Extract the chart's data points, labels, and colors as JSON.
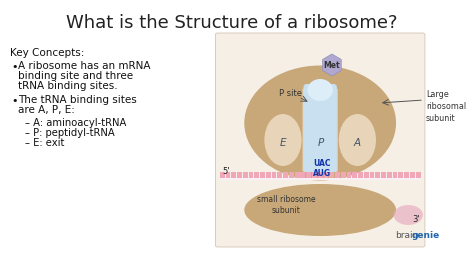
{
  "bg_color": "#ffffff",
  "diagram_bg": "#f5efe6",
  "title": "What is the Structure of a ribosome?",
  "title_fontsize": 13,
  "title_color": "#222222",
  "key_concepts_label": "Key Concepts:",
  "bullet1_line1": "A ribosome has an mRNA",
  "bullet1_line2": "binding site and three",
  "bullet1_line3": "tRNA binding sites.",
  "bullet2_line1": "The tRNA binding sites",
  "bullet2_line2": "are A, P, E:",
  "sub1": "A: aminoacyl-tRNA",
  "sub2": "P: peptidyl-tRNA",
  "sub3": "E: exit",
  "braingenie_text": "brain",
  "braingenie_text2": "genie",
  "large_subunit_label": "Large\nribosomal\nsubunit",
  "small_subunit_label": "small ribosome\nsubunit",
  "p_site_label": "P site",
  "met_label": "Met",
  "five_prime": "5'",
  "three_prime": "3'",
  "e_label": "E",
  "p_label": "P",
  "a_label": "A",
  "codon_top": "UAC",
  "codon_bot": "AUG",
  "tan_dark": "#b89870",
  "tan_mid": "#c8a878",
  "tan_light": "#d8bc98",
  "tan_lighter": "#e8d4b8",
  "pink_mrna": "#f0a8b8",
  "blue_trna": "#c8e0f0",
  "blue_lighter": "#ddeef8",
  "met_color": "#b0a8d0",
  "text_dark": "#111111",
  "arrow_color": "#555555"
}
